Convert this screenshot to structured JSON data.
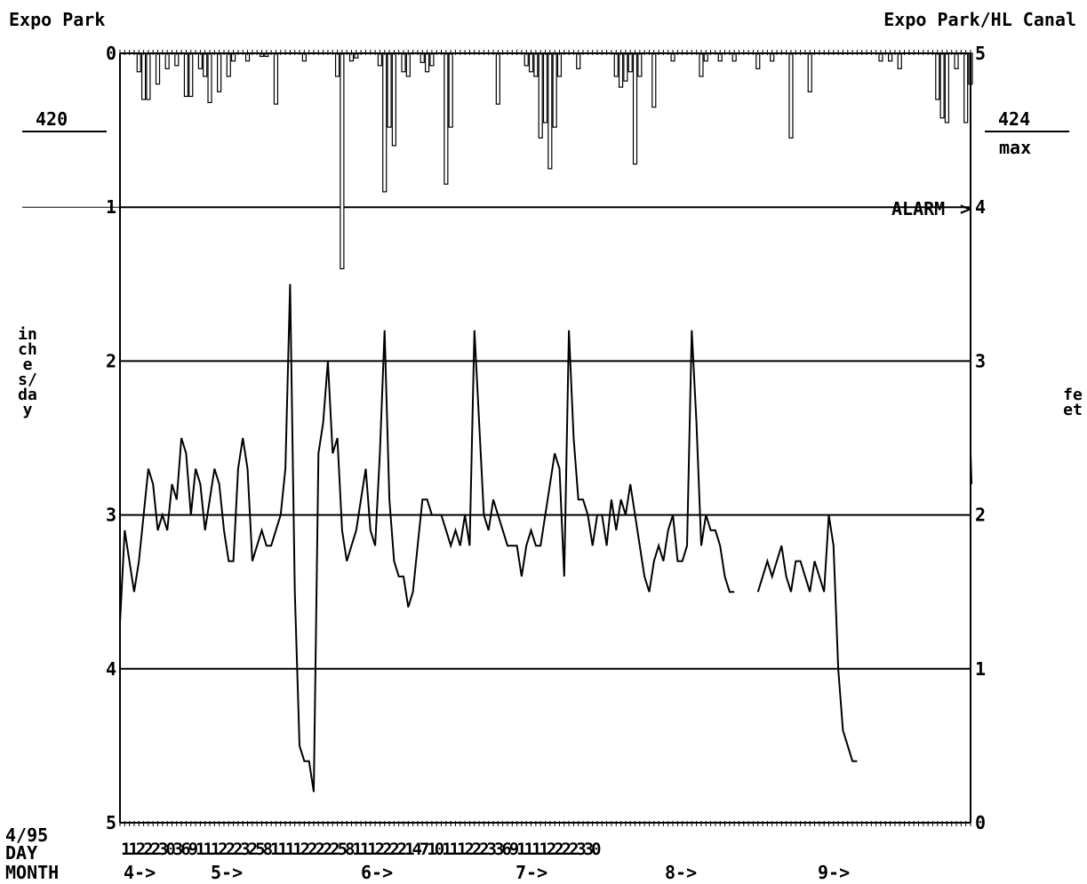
{
  "header": {
    "left_title": "Expo Park",
    "right_title": "Expo Park/HL Canal",
    "left_value": "420",
    "right_value": "424",
    "right_value_label": "max",
    "alarm_label": "ALARM"
  },
  "footer": {
    "date": "4/95",
    "day_label": "DAY",
    "month_label": "MONTH",
    "day_ticks_text": "1122230369111222325811112222258111222214710111222336911112222330",
    "month_markers": [
      "4->",
      "5->",
      "6->",
      "7->",
      "8->",
      "9->"
    ]
  },
  "chart_data": {
    "type": "line",
    "rain_axis": {
      "label": "inches/day",
      "ticks": [
        "0",
        "1",
        "2",
        "3",
        "4",
        "5"
      ],
      "ylim": [
        0,
        5
      ],
      "inverted": true
    },
    "level_axis": {
      "label": "feet",
      "ticks": [
        "0",
        "1",
        "2",
        "3",
        "4",
        "5"
      ],
      "ylim": [
        0,
        5
      ]
    },
    "x": {
      "range_days": [
        1,
        181
      ],
      "start": "4/1/95",
      "end": "9/30/95"
    },
    "grid_lines_feet": [
      1,
      2,
      3,
      4
    ],
    "alarm_level_feet": 4,
    "rain_bars": [
      {
        "day": 5,
        "value": 0.12
      },
      {
        "day": 6,
        "value": 0.3
      },
      {
        "day": 7,
        "value": 0.3
      },
      {
        "day": 9,
        "value": 0.2
      },
      {
        "day": 11,
        "value": 0.1
      },
      {
        "day": 13,
        "value": 0.08
      },
      {
        "day": 15,
        "value": 0.28
      },
      {
        "day": 16,
        "value": 0.28
      },
      {
        "day": 18,
        "value": 0.1
      },
      {
        "day": 19,
        "value": 0.15
      },
      {
        "day": 20,
        "value": 0.32
      },
      {
        "day": 22,
        "value": 0.25
      },
      {
        "day": 24,
        "value": 0.15
      },
      {
        "day": 25,
        "value": 0.05
      },
      {
        "day": 28,
        "value": 0.05
      },
      {
        "day": 31,
        "value": 0.02
      },
      {
        "day": 32,
        "value": 0.02
      },
      {
        "day": 34,
        "value": 0.33
      },
      {
        "day": 40,
        "value": 0.05
      },
      {
        "day": 47,
        "value": 0.15
      },
      {
        "day": 48,
        "value": 1.4
      },
      {
        "day": 50,
        "value": 0.05
      },
      {
        "day": 51,
        "value": 0.03
      },
      {
        "day": 56,
        "value": 0.08
      },
      {
        "day": 57,
        "value": 0.9
      },
      {
        "day": 58,
        "value": 0.48
      },
      {
        "day": 59,
        "value": 0.6
      },
      {
        "day": 61,
        "value": 0.12
      },
      {
        "day": 62,
        "value": 0.15
      },
      {
        "day": 65,
        "value": 0.06
      },
      {
        "day": 66,
        "value": 0.12
      },
      {
        "day": 67,
        "value": 0.08
      },
      {
        "day": 70,
        "value": 0.85
      },
      {
        "day": 71,
        "value": 0.48
      },
      {
        "day": 81,
        "value": 0.33
      },
      {
        "day": 87,
        "value": 0.08
      },
      {
        "day": 88,
        "value": 0.12
      },
      {
        "day": 89,
        "value": 0.15
      },
      {
        "day": 90,
        "value": 0.55
      },
      {
        "day": 91,
        "value": 0.45
      },
      {
        "day": 92,
        "value": 0.75
      },
      {
        "day": 93,
        "value": 0.48
      },
      {
        "day": 94,
        "value": 0.15
      },
      {
        "day": 98,
        "value": 0.1
      },
      {
        "day": 106,
        "value": 0.15
      },
      {
        "day": 107,
        "value": 0.22
      },
      {
        "day": 108,
        "value": 0.18
      },
      {
        "day": 109,
        "value": 0.12
      },
      {
        "day": 110,
        "value": 0.72
      },
      {
        "day": 111,
        "value": 0.15
      },
      {
        "day": 114,
        "value": 0.35
      },
      {
        "day": 118,
        "value": 0.05
      },
      {
        "day": 124,
        "value": 0.15
      },
      {
        "day": 125,
        "value": 0.05
      },
      {
        "day": 128,
        "value": 0.05
      },
      {
        "day": 131,
        "value": 0.05
      },
      {
        "day": 136,
        "value": 0.1
      },
      {
        "day": 139,
        "value": 0.05
      },
      {
        "day": 143,
        "value": 0.55
      },
      {
        "day": 147,
        "value": 0.25
      },
      {
        "day": 162,
        "value": 0.05
      },
      {
        "day": 164,
        "value": 0.05
      },
      {
        "day": 166,
        "value": 0.1
      },
      {
        "day": 174,
        "value": 0.3
      },
      {
        "day": 175,
        "value": 0.42
      },
      {
        "day": 176,
        "value": 0.45
      },
      {
        "day": 178,
        "value": 0.1
      },
      {
        "day": 180,
        "value": 0.45
      },
      {
        "day": 181,
        "value": 0.2
      }
    ],
    "level_segments": [
      [
        [
          1,
          1.3
        ],
        [
          2,
          1.9
        ],
        [
          3,
          1.7
        ],
        [
          4,
          1.5
        ],
        [
          5,
          1.7
        ],
        [
          6,
          2.0
        ],
        [
          7,
          2.3
        ],
        [
          8,
          2.2
        ],
        [
          9,
          1.9
        ],
        [
          10,
          2.0
        ],
        [
          11,
          1.9
        ],
        [
          12,
          2.2
        ],
        [
          13,
          2.1
        ],
        [
          14,
          2.5
        ],
        [
          15,
          2.4
        ],
        [
          16,
          2.0
        ],
        [
          17,
          2.3
        ],
        [
          18,
          2.2
        ],
        [
          19,
          1.9
        ],
        [
          20,
          2.1
        ],
        [
          21,
          2.3
        ],
        [
          22,
          2.2
        ],
        [
          23,
          1.9
        ],
        [
          24,
          1.7
        ],
        [
          25,
          1.7
        ],
        [
          26,
          2.3
        ],
        [
          27,
          2.5
        ],
        [
          28,
          2.3
        ],
        [
          29,
          1.7
        ],
        [
          30,
          1.8
        ],
        [
          31,
          1.9
        ],
        [
          32,
          1.8
        ],
        [
          33,
          1.8
        ],
        [
          34,
          1.9
        ],
        [
          35,
          2.0
        ],
        [
          36,
          2.3
        ],
        [
          37,
          3.5
        ],
        [
          38,
          1.5
        ],
        [
          39,
          0.5
        ],
        [
          40,
          0.4
        ],
        [
          41,
          0.4
        ],
        [
          42,
          0.2
        ],
        [
          43,
          2.4
        ],
        [
          44,
          2.6
        ],
        [
          45,
          3.0
        ],
        [
          46,
          2.4
        ],
        [
          47,
          2.5
        ],
        [
          48,
          1.9
        ],
        [
          49,
          1.7
        ],
        [
          50,
          1.8
        ],
        [
          51,
          1.9
        ],
        [
          52,
          2.1
        ],
        [
          53,
          2.3
        ],
        [
          54,
          1.9
        ],
        [
          55,
          1.8
        ],
        [
          56,
          2.4
        ],
        [
          57,
          3.2
        ],
        [
          58,
          2.1
        ],
        [
          59,
          1.7
        ],
        [
          60,
          1.6
        ],
        [
          61,
          1.6
        ],
        [
          62,
          1.4
        ],
        [
          63,
          1.5
        ],
        [
          64,
          1.8
        ],
        [
          65,
          2.1
        ],
        [
          66,
          2.1
        ],
        [
          67,
          2.0
        ],
        [
          68,
          2.0
        ],
        [
          69,
          2.0
        ],
        [
          70,
          1.9
        ],
        [
          71,
          1.8
        ],
        [
          72,
          1.9
        ],
        [
          73,
          1.8
        ],
        [
          74,
          2.0
        ],
        [
          75,
          1.8
        ],
        [
          76,
          3.2
        ],
        [
          77,
          2.6
        ],
        [
          78,
          2.0
        ],
        [
          79,
          1.9
        ],
        [
          80,
          2.1
        ],
        [
          81,
          2.0
        ],
        [
          82,
          1.9
        ],
        [
          83,
          1.8
        ],
        [
          84,
          1.8
        ],
        [
          85,
          1.8
        ],
        [
          86,
          1.6
        ],
        [
          87,
          1.8
        ],
        [
          88,
          1.9
        ],
        [
          89,
          1.8
        ],
        [
          90,
          1.8
        ],
        [
          91,
          2.0
        ],
        [
          92,
          2.2
        ],
        [
          93,
          2.4
        ],
        [
          94,
          2.3
        ],
        [
          95,
          1.6
        ],
        [
          96,
          3.2
        ],
        [
          97,
          2.5
        ],
        [
          98,
          2.1
        ],
        [
          99,
          2.1
        ],
        [
          100,
          2.0
        ],
        [
          101,
          1.8
        ],
        [
          102,
          2.0
        ],
        [
          103,
          2.0
        ],
        [
          104,
          1.8
        ],
        [
          105,
          2.1
        ],
        [
          106,
          1.9
        ],
        [
          107,
          2.1
        ],
        [
          108,
          2.0
        ],
        [
          109,
          2.2
        ],
        [
          110,
          2.0
        ],
        [
          111,
          1.8
        ],
        [
          112,
          1.6
        ],
        [
          113,
          1.5
        ],
        [
          114,
          1.7
        ],
        [
          115,
          1.8
        ],
        [
          116,
          1.7
        ],
        [
          117,
          1.9
        ],
        [
          118,
          2.0
        ],
        [
          119,
          1.7
        ],
        [
          120,
          1.7
        ],
        [
          121,
          1.8
        ],
        [
          122,
          3.2
        ],
        [
          123,
          2.6
        ],
        [
          124,
          1.8
        ],
        [
          125,
          2.0
        ],
        [
          126,
          1.9
        ],
        [
          127,
          1.9
        ],
        [
          128,
          1.8
        ],
        [
          129,
          1.6
        ],
        [
          130,
          1.5
        ],
        [
          131,
          1.5
        ]
      ],
      [
        [
          136,
          1.5
        ],
        [
          137,
          1.6
        ],
        [
          138,
          1.7
        ],
        [
          139,
          1.6
        ],
        [
          140,
          1.7
        ],
        [
          141,
          1.8
        ],
        [
          142,
          1.6
        ],
        [
          143,
          1.5
        ],
        [
          144,
          1.7
        ],
        [
          145,
          1.7
        ],
        [
          146,
          1.6
        ],
        [
          147,
          1.5
        ],
        [
          148,
          1.7
        ],
        [
          149,
          1.6
        ],
        [
          150,
          1.5
        ],
        [
          151,
          2.0
        ],
        [
          152,
          1.8
        ],
        [
          153,
          1.0
        ],
        [
          154,
          0.6
        ],
        [
          155,
          0.5
        ],
        [
          156,
          0.4
        ],
        [
          157,
          0.4
        ]
      ],
      [
        [
          181,
          2.4
        ],
        [
          181.2,
          2.2
        ]
      ]
    ]
  }
}
